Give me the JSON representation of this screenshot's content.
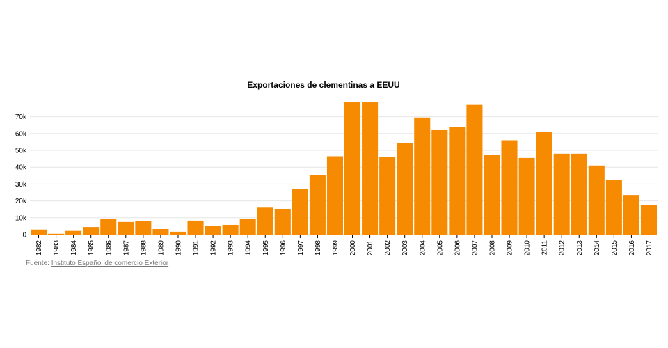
{
  "chart_data": {
    "type": "bar",
    "title": "Exportaciones de clementinas a EEUU",
    "xlabel": "",
    "ylabel": "",
    "ylim": [
      0,
      80000
    ],
    "y_ticks": [
      0,
      10000,
      20000,
      30000,
      40000,
      50000,
      60000,
      70000
    ],
    "y_tick_labels": [
      "0",
      "10k",
      "20k",
      "30k",
      "40k",
      "50k",
      "60k",
      "70k"
    ],
    "grid": true,
    "bar_color": "#f68a00",
    "categories": [
      "1982",
      "1983",
      "1984",
      "1985",
      "1986",
      "1987",
      "1988",
      "1989",
      "1990",
      "1991",
      "1992",
      "1993",
      "1994",
      "1995",
      "1996",
      "1997",
      "1998",
      "1999",
      "2000",
      "2001",
      "2002",
      "2003",
      "2004",
      "2005",
      "2006",
      "2007",
      "2008",
      "2009",
      "2010",
      "2011",
      "2012",
      "2013",
      "2014",
      "2015",
      "2016",
      "2017"
    ],
    "values": [
      3000,
      500,
      2200,
      4500,
      9500,
      7500,
      8000,
      3300,
      1700,
      8300,
      5000,
      5800,
      9200,
      16000,
      15000,
      27000,
      35500,
      46500,
      78500,
      78500,
      46000,
      54500,
      69500,
      62000,
      64000,
      77000,
      47500,
      56000,
      45500,
      61000,
      48000,
      48000,
      41000,
      32500,
      23500,
      17500
    ]
  },
  "source": {
    "prefix": "Fuente: ",
    "link_text": "Instituto Español de comercio Exterior"
  }
}
